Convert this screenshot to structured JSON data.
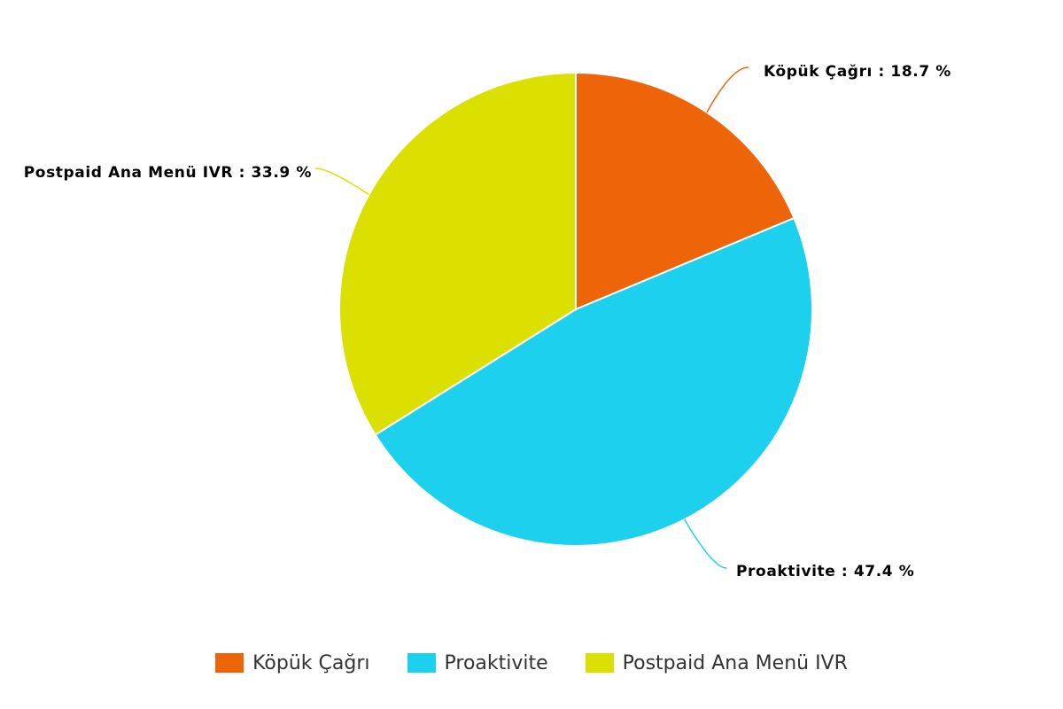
{
  "chart_data": {
    "type": "pie",
    "slices": [
      {
        "name": "Köpük Çağrı",
        "value": 18.7,
        "color": "#ee6509",
        "label": "Köpük Çağrı : 18.7 %"
      },
      {
        "name": "Proaktivite",
        "value": 47.4,
        "color": "#1dd1ee",
        "label": "Proaktivite : 47.4 %"
      },
      {
        "name": "Postpaid Ana Menü IVR",
        "value": 33.9,
        "color": "#dbe001",
        "label": "Postpaid Ana Menü IVR : 33.9 %"
      }
    ],
    "legend_position": "bottom"
  },
  "legend": {
    "items": [
      {
        "label": "Köpük Çağrı",
        "color": "#ee6509"
      },
      {
        "label": "Proaktivite",
        "color": "#1dd1ee"
      },
      {
        "label": "Postpaid Ana Menü IVR",
        "color": "#dbe001"
      }
    ]
  }
}
